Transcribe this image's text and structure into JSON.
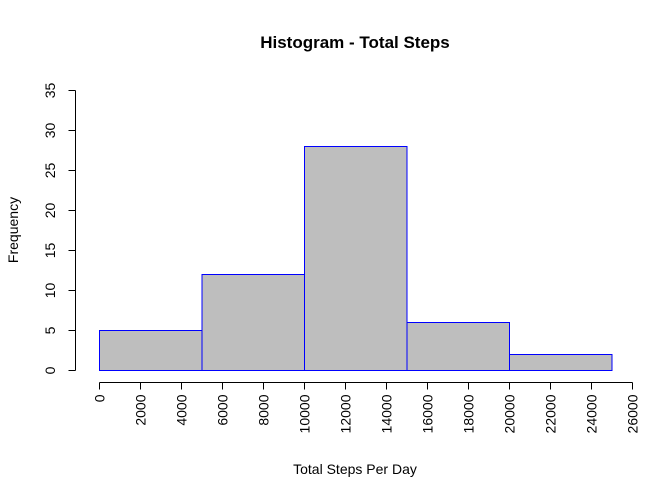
{
  "chart_data": {
    "type": "bar",
    "title": "Histogram - Total Steps",
    "xlabel": "Total Steps Per Day",
    "ylabel": "Frequency",
    "bins": [
      {
        "from": 0,
        "to": 5000,
        "count": 5
      },
      {
        "from": 5000,
        "to": 10000,
        "count": 12
      },
      {
        "from": 10000,
        "to": 15000,
        "count": 28
      },
      {
        "from": 15000,
        "to": 20000,
        "count": 6
      },
      {
        "from": 20000,
        "to": 25000,
        "count": 2
      }
    ],
    "xlim": [
      0,
      26000
    ],
    "ylim": [
      0,
      35
    ],
    "xticks": [
      0,
      2000,
      4000,
      6000,
      8000,
      10000,
      12000,
      14000,
      16000,
      18000,
      20000,
      22000,
      24000,
      26000
    ],
    "yticks": [
      0,
      5,
      10,
      15,
      20,
      25,
      30,
      35
    ],
    "bar_fill": "#bebebe",
    "bar_border": "#0000ff",
    "grid": false,
    "legend": "none"
  }
}
